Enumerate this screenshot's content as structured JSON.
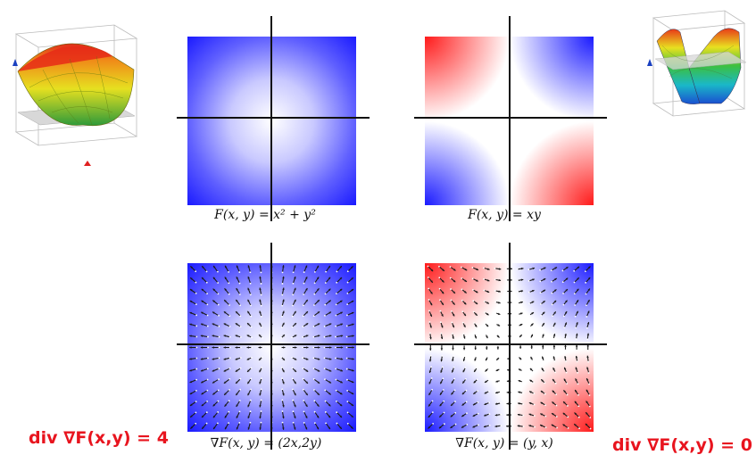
{
  "colors": {
    "positive": "#1a1aff",
    "negative": "#ff1a1a",
    "label_red": "#e8141e",
    "axis": "#111111"
  },
  "panels": [
    {
      "id": "top-left",
      "function": "x^2+y^2",
      "shading": "blue-radial",
      "caption": "F(x, y) = x² + y²"
    },
    {
      "id": "top-right",
      "function": "xy",
      "shading": "red-blue-saddle",
      "caption": "F(x, y) = xy"
    },
    {
      "id": "bottom-left",
      "function": "x^2+y^2",
      "shading": "blue-radial",
      "vector_field": "(2x,2y)",
      "caption": "∇F(x, y) = (2x,2y)"
    },
    {
      "id": "bottom-right",
      "function": "xy",
      "shading": "red-blue-saddle",
      "vector_field": "(y,x)",
      "caption": "∇F(x, y) = (y, x)"
    }
  ],
  "labels": {
    "div_left": "div ∇F(x,y) = 4",
    "div_right": "div ∇F(x,y) = 0"
  },
  "surfaces": [
    {
      "id": "paraboloid-plot",
      "icon": "paraboloid-surface-icon"
    },
    {
      "id": "saddle-plot",
      "icon": "saddle-surface-icon"
    }
  ]
}
